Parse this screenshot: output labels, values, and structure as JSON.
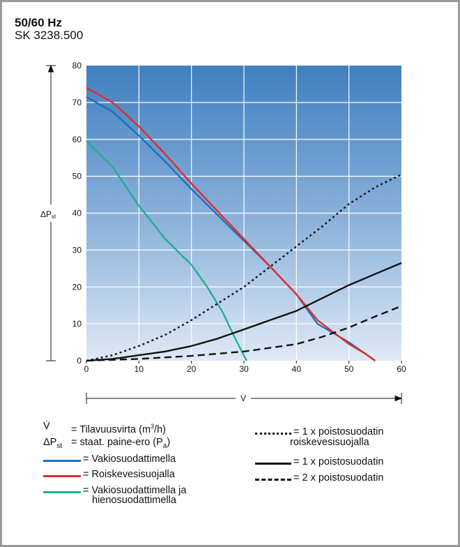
{
  "header": {
    "title": "50/60 Hz",
    "subtitle": "SK 3238.500"
  },
  "chart_data": {
    "type": "line",
    "xlabel": "V̇",
    "ylabel": "ΔPst",
    "xlim": [
      0,
      60
    ],
    "ylim": [
      0,
      80
    ],
    "x_ticks": [
      0,
      10,
      20,
      30,
      40,
      50,
      60
    ],
    "y_ticks": [
      0,
      10,
      20,
      30,
      40,
      50,
      60,
      70,
      80
    ],
    "grid": true,
    "series": [
      {
        "name": "Vakiosuodattimella",
        "color": "#1f6fb8",
        "style": "solid",
        "points": [
          [
            0,
            71.5
          ],
          [
            5,
            67.5
          ],
          [
            10,
            61
          ],
          [
            15,
            54
          ],
          [
            20,
            46.5
          ],
          [
            25,
            39.5
          ],
          [
            30,
            32.5
          ],
          [
            35,
            25.5
          ],
          [
            40,
            18
          ],
          [
            44,
            10
          ],
          [
            50,
            5
          ],
          [
            53,
            2
          ],
          [
            55,
            0
          ]
        ]
      },
      {
        "name": "Roiskevesisuojalla",
        "color": "#e32b2b",
        "style": "solid",
        "points": [
          [
            0,
            74
          ],
          [
            5,
            70
          ],
          [
            10,
            63.5
          ],
          [
            15,
            56
          ],
          [
            20,
            48
          ],
          [
            25,
            40.5
          ],
          [
            30,
            33
          ],
          [
            35,
            25.5
          ],
          [
            40,
            18
          ],
          [
            44,
            11
          ],
          [
            50,
            4.5
          ],
          [
            53,
            2
          ],
          [
            55,
            0
          ]
        ]
      },
      {
        "name": "Vakiosuodattimella ja hienosuodattimella",
        "color": "#20b08f",
        "style": "solid",
        "points": [
          [
            0,
            59.5
          ],
          [
            5,
            52.5
          ],
          [
            10,
            42
          ],
          [
            15,
            33
          ],
          [
            20,
            26
          ],
          [
            23,
            20
          ],
          [
            26,
            13
          ],
          [
            28,
            7
          ],
          [
            30.5,
            0
          ]
        ]
      },
      {
        "name": "1 x poistosuodatin roiskevesisuojalla",
        "color": "#111111",
        "style": "dotted",
        "points": [
          [
            0,
            0
          ],
          [
            5,
            1.5
          ],
          [
            10,
            4
          ],
          [
            15,
            7
          ],
          [
            20,
            11
          ],
          [
            25,
            15.5
          ],
          [
            30,
            20
          ],
          [
            35,
            25.5
          ],
          [
            40,
            31
          ],
          [
            45,
            36.5
          ],
          [
            50,
            42.5
          ],
          [
            55,
            47
          ],
          [
            60,
            50.5
          ]
        ]
      },
      {
        "name": "1 x poistosuodatin",
        "color": "#111111",
        "style": "solid",
        "points": [
          [
            0,
            0
          ],
          [
            5,
            0.5
          ],
          [
            10,
            1.5
          ],
          [
            15,
            2.5
          ],
          [
            20,
            4
          ],
          [
            25,
            6
          ],
          [
            30,
            8.5
          ],
          [
            35,
            11
          ],
          [
            40,
            13.5
          ],
          [
            45,
            17
          ],
          [
            50,
            20.5
          ],
          [
            55,
            23.5
          ],
          [
            60,
            26.5
          ]
        ]
      },
      {
        "name": "2 x poistosuodatin",
        "color": "#111111",
        "style": "dashed",
        "points": [
          [
            0,
            0
          ],
          [
            10,
            0.5
          ],
          [
            20,
            1.3
          ],
          [
            30,
            2.5
          ],
          [
            40,
            4.5
          ],
          [
            45,
            6.5
          ],
          [
            50,
            9
          ],
          [
            55,
            12
          ],
          [
            60,
            14.8
          ]
        ]
      }
    ]
  },
  "legend": {
    "left": [
      {
        "symbol": "V̇",
        "eq": "= Tilavuusvirta (m",
        "sup": "3",
        "tail": "/h)"
      },
      {
        "symbol": "ΔPst",
        "eq": "= staat. paine-ero (P",
        "sub": "a",
        "tail": ")"
      },
      {
        "line": "#1f6fb8",
        "eq": "= Vakiosuodattimella"
      },
      {
        "line": "#e32b2b",
        "eq": "= Roiskevesisuojalla"
      },
      {
        "line": "#20b08f",
        "eq": "= Vakiosuodattimella ja",
        "eq2": "hienosuodattimella"
      }
    ],
    "right": [
      {
        "style": "dotted",
        "eq": "= 1 x poistosuodatin",
        "eq2": "roiskevesisuojalla"
      },
      {
        "style": "solid",
        "eq": "= 1 x poistosuodatin"
      },
      {
        "style": "dashed",
        "eq": "= 2 x poistosuodatin"
      }
    ]
  }
}
